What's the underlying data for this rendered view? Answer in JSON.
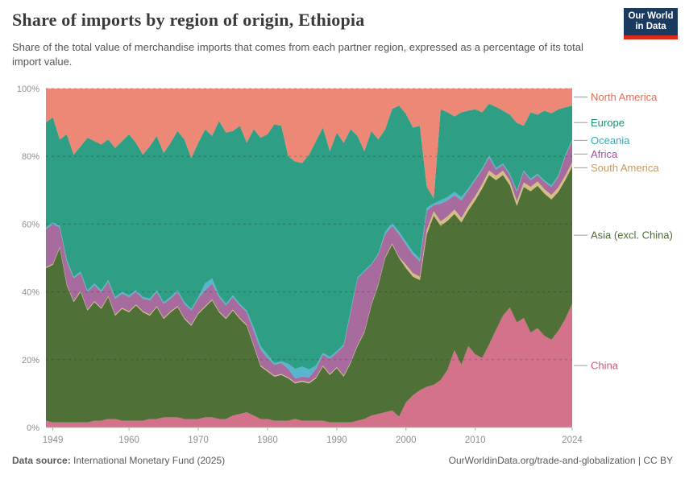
{
  "header": {
    "title": "Share of imports by region of origin, Ethiopia",
    "subtitle": "Share of the total value of merchandise imports that comes from each partner region, expressed as a percentage of its total import value.",
    "logo_line1": "Our World",
    "logo_line2": "in Data"
  },
  "footer": {
    "source_label": "Data source:",
    "source_text": " International Monetary Fund (2025)",
    "credit": "OurWorldinData.org/trade-and-globalization | CC BY"
  },
  "chart_data": {
    "type": "area",
    "stacked": true,
    "normalized_to_percent": true,
    "title": "Share of imports by region of origin, Ethiopia",
    "unit": "%",
    "year_start": 1948,
    "year_end": 2024,
    "ylim": [
      0,
      100
    ],
    "yticks": [
      0,
      20,
      40,
      60,
      80,
      100
    ],
    "ytick_suffix": "%",
    "xticks": [
      1949,
      1960,
      1970,
      1980,
      1990,
      2000,
      2010,
      2024
    ],
    "grid": "dashed",
    "legend_position": "right",
    "series": [
      {
        "name": "China",
        "color": "#d4728b",
        "label_color": "#ce5b77",
        "values": [
          2,
          1.5,
          1.5,
          1.5,
          1.5,
          1.5,
          1.5,
          2,
          2,
          2.5,
          2.5,
          2,
          2,
          2,
          2,
          2.5,
          2.5,
          3,
          3,
          3,
          2.5,
          2.5,
          2.5,
          3,
          3,
          2.5,
          2.5,
          3.5,
          4,
          4.5,
          3.5,
          2.5,
          2.5,
          2,
          2,
          2,
          2.5,
          2,
          2,
          2,
          2,
          1.5,
          1.5,
          1.5,
          1.5,
          2,
          2.5,
          3.5,
          4,
          4.5,
          5,
          3.2,
          7.4,
          9.5,
          11,
          12,
          12.6,
          14,
          17,
          22.8,
          18.5,
          24,
          21.6,
          20.5,
          24.5,
          28.8,
          33,
          35.4,
          31,
          32.3,
          28,
          29.3,
          27,
          25.9,
          28.5,
          32,
          36.5
        ]
      },
      {
        "name": "Asia (excl. China)",
        "color": "#4f7036",
        "label_color": "#4a6b33",
        "values": [
          45,
          46.5,
          51.5,
          40.5,
          35.5,
          38.5,
          33,
          35,
          33,
          36,
          30.5,
          33,
          32,
          34,
          32,
          30.5,
          33,
          29,
          31,
          32.5,
          29.5,
          27.5,
          31,
          32.5,
          34.5,
          31.5,
          29.5,
          31,
          28,
          25.5,
          20.5,
          15.5,
          14,
          13,
          13.5,
          12.5,
          10.5,
          11.5,
          11,
          12.5,
          16,
          14,
          16,
          13.5,
          17.5,
          22,
          25.5,
          32.5,
          38,
          45.5,
          49,
          46.8,
          39.6,
          35,
          32.5,
          45,
          49.9,
          45.5,
          44,
          40.2,
          42,
          40,
          45.4,
          50,
          50,
          44.2,
          41.5,
          36.1,
          34.4,
          38.7,
          41.7,
          42,
          42,
          41.4,
          41,
          41,
          40.5
        ]
      },
      {
        "name": "South America",
        "color": "#d5be82",
        "label_color": "#c89a64",
        "values": [
          0.3,
          0.3,
          0.3,
          0.3,
          0.3,
          0.3,
          0.3,
          0.3,
          0.3,
          0.3,
          0.3,
          0.3,
          0.3,
          0.3,
          0.3,
          0.3,
          0.3,
          0.3,
          0.3,
          0.3,
          0.3,
          0.3,
          0.3,
          0.3,
          0.3,
          0.3,
          0.3,
          0.3,
          0.3,
          0.3,
          0.3,
          0.3,
          0.3,
          0.3,
          0.3,
          0.3,
          0.3,
          0.3,
          0.3,
          0.3,
          0.3,
          0.3,
          0.3,
          0.3,
          0.3,
          0.3,
          0.3,
          0.3,
          0.3,
          0.3,
          0.3,
          0.3,
          1,
          1,
          1,
          1.3,
          1.3,
          1.3,
          1.3,
          1.3,
          1.3,
          1.3,
          1.3,
          1.3,
          1.3,
          1.3,
          1.3,
          1.3,
          1.3,
          1.3,
          1.3,
          1.3,
          1.3,
          1.3,
          1.3,
          1.3,
          1.3
        ]
      },
      {
        "name": "Africa",
        "color": "#a76b9d",
        "label_color": "#a2559c",
        "values": [
          11.2,
          11.7,
          5.7,
          6.7,
          6.7,
          5.2,
          5.2,
          4.7,
          4.7,
          4.2,
          4.7,
          4.2,
          4.2,
          3.7,
          3.7,
          4.2,
          4.2,
          4.2,
          3.7,
          4.2,
          4.2,
          4.2,
          4.2,
          4.7,
          4.7,
          4.2,
          3.7,
          3.7,
          3.7,
          3.7,
          4.2,
          4.7,
          3.7,
          3.2,
          3.2,
          2.5,
          1.2,
          1.2,
          1.5,
          2.5,
          3.2,
          4.5,
          4.2,
          8.7,
          14.7,
          19.7,
          17.7,
          11.7,
          8.7,
          6.7,
          5.2,
          6.7,
          6,
          5.5,
          4.5,
          5.7,
          1.8,
          5.2,
          4.7,
          4.2,
          5.2,
          4.7,
          4.7,
          4.2,
          3.9,
          1.8,
          1.7,
          1.7,
          2.8,
          3.2,
          2,
          1.9,
          2.2,
          2.4,
          3.2,
          5.7,
          6.2
        ]
      },
      {
        "name": "Oceania",
        "color": "#57b6cd",
        "label_color": "#38aaba",
        "values": [
          0.5,
          0.5,
          0.5,
          0.5,
          0.5,
          0.5,
          0.5,
          0.5,
          0.5,
          0.5,
          0.5,
          0.5,
          0.5,
          0.5,
          0.5,
          0.5,
          0.5,
          0.5,
          0.5,
          0.5,
          0.5,
          0.5,
          0.5,
          2,
          1.5,
          0.5,
          0.5,
          0.5,
          0.5,
          0.5,
          1,
          1,
          1,
          0.5,
          0.5,
          1.5,
          2.8,
          3,
          2.3,
          1,
          0.5,
          0.5,
          0.5,
          0.5,
          0.5,
          0.3,
          0.3,
          0.3,
          0.3,
          0.8,
          0.8,
          0.8,
          0.8,
          0.8,
          0.8,
          0.8,
          0.5,
          1,
          1,
          1,
          1,
          0.5,
          0.5,
          0.5,
          0.5,
          0.5,
          0.4,
          0.4,
          0.4,
          0.4,
          0.4,
          0.4,
          0.4,
          0.4,
          0.4,
          0.4,
          0.4,
          0.4
        ]
      },
      {
        "name": "Europe",
        "color": "#2e9e85",
        "label_color": "#1f8e74",
        "values": [
          31,
          31,
          25.5,
          37,
          36,
          37,
          45,
          42,
          43,
          41.5,
          44,
          44.5,
          47.5,
          43.5,
          42,
          45,
          45.5,
          44,
          45.5,
          47,
          48,
          44.5,
          45.5,
          45.5,
          42,
          51.5,
          50.5,
          48.5,
          52.5,
          49.5,
          58.5,
          61.5,
          65,
          70.5,
          69.5,
          61.2,
          61.2,
          60,
          63.4,
          66.2,
          66.5,
          60.7,
          64.5,
          59.5,
          53.5,
          41.7,
          35.2,
          39.2,
          33.7,
          30.2,
          33.7,
          37.2,
          37.7,
          36.7,
          39.2,
          6.2,
          1.5,
          26.9,
          25,
          22.3,
          25,
          23,
          20.4,
          16.5,
          15.3,
          18,
          15.6,
          17.4,
          20,
          13.1,
          19.6,
          17.4,
          20.6,
          21.3,
          19.5,
          14.1,
          10.1
        ]
      },
      {
        "name": "North America",
        "color": "#ee8876",
        "label_color": "#e56e5a",
        "values": [
          10,
          8.5,
          15,
          13.5,
          19.5,
          17,
          14.5,
          15.5,
          16.5,
          15,
          17.5,
          15.5,
          13.5,
          16,
          19.5,
          17,
          14,
          19,
          16,
          12.5,
          15,
          20.5,
          16,
          12,
          14,
          9.5,
          13,
          12.5,
          11,
          16,
          12,
          14.5,
          13.5,
          10.5,
          11,
          20,
          21.5,
          22,
          19.5,
          15.5,
          11.5,
          18.5,
          13,
          16,
          12,
          14,
          18.5,
          12.5,
          15,
          12,
          6,
          5,
          7.5,
          11.5,
          11,
          29,
          32.4,
          6.1,
          7,
          8.2,
          7,
          6.5,
          6.1,
          7,
          4.5,
          5.4,
          6.5,
          7.7,
          10.1,
          11,
          7,
          7.7,
          6.5,
          7.3,
          6.1,
          5.5,
          5
        ]
      }
    ]
  }
}
